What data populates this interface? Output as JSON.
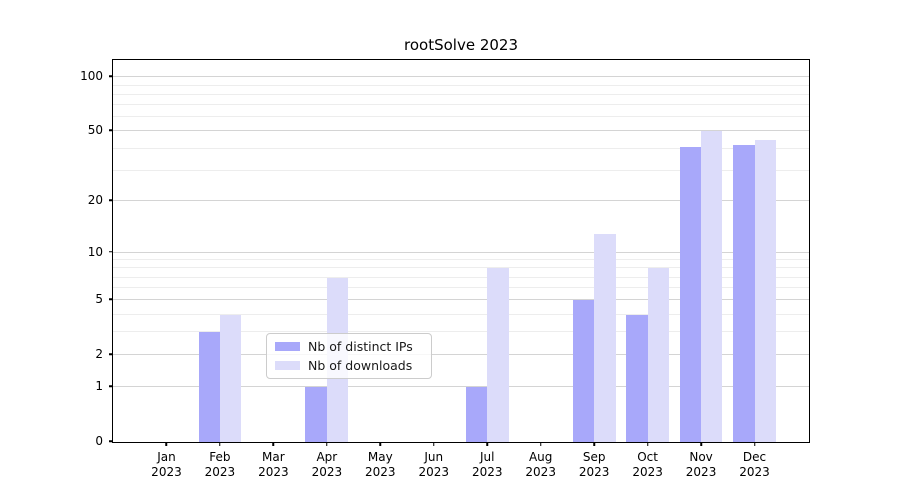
{
  "title": "rootSolve 2023",
  "legend": {
    "items": [
      {
        "label": "Nb of distinct IPs",
        "color": "#a8a8fa"
      },
      {
        "label": "Nb of downloads",
        "color": "#dcdcfa"
      }
    ]
  },
  "chart_data": {
    "type": "bar",
    "title": "rootSolve 2023",
    "categories": [
      "Jan 2023",
      "Feb 2023",
      "Mar 2023",
      "Apr 2023",
      "May 2023",
      "Jun 2023",
      "Jul 2023",
      "Aug 2023",
      "Sep 2023",
      "Oct 2023",
      "Nov 2023",
      "Dec 2023"
    ],
    "series": [
      {
        "name": "Nb of distinct IPs",
        "color": "#a8a8fa",
        "values": [
          0,
          3,
          0,
          1,
          0,
          0,
          1,
          0,
          5,
          4,
          41,
          42
        ]
      },
      {
        "name": "Nb of downloads",
        "color": "#dcdcfa",
        "values": [
          0,
          4,
          0,
          7,
          0,
          0,
          8,
          0,
          13,
          8,
          50,
          45
        ]
      }
    ],
    "xlabel": "",
    "ylabel": "",
    "yscale": "log1p",
    "yticks": [
      0,
      1,
      2,
      5,
      10,
      20,
      50,
      100
    ],
    "minor_gridlines": [
      3,
      4,
      6,
      7,
      8,
      9,
      30,
      40,
      60,
      70,
      80,
      90
    ],
    "ylim": [
      0,
      128
    ],
    "grid": "horizontal",
    "legend_position": "lower-center-inside",
    "bar_group_width": 0.8,
    "colors": {
      "major_grid": "#d4d4d4",
      "minor_grid": "#ededed",
      "spine": "#000000"
    }
  }
}
